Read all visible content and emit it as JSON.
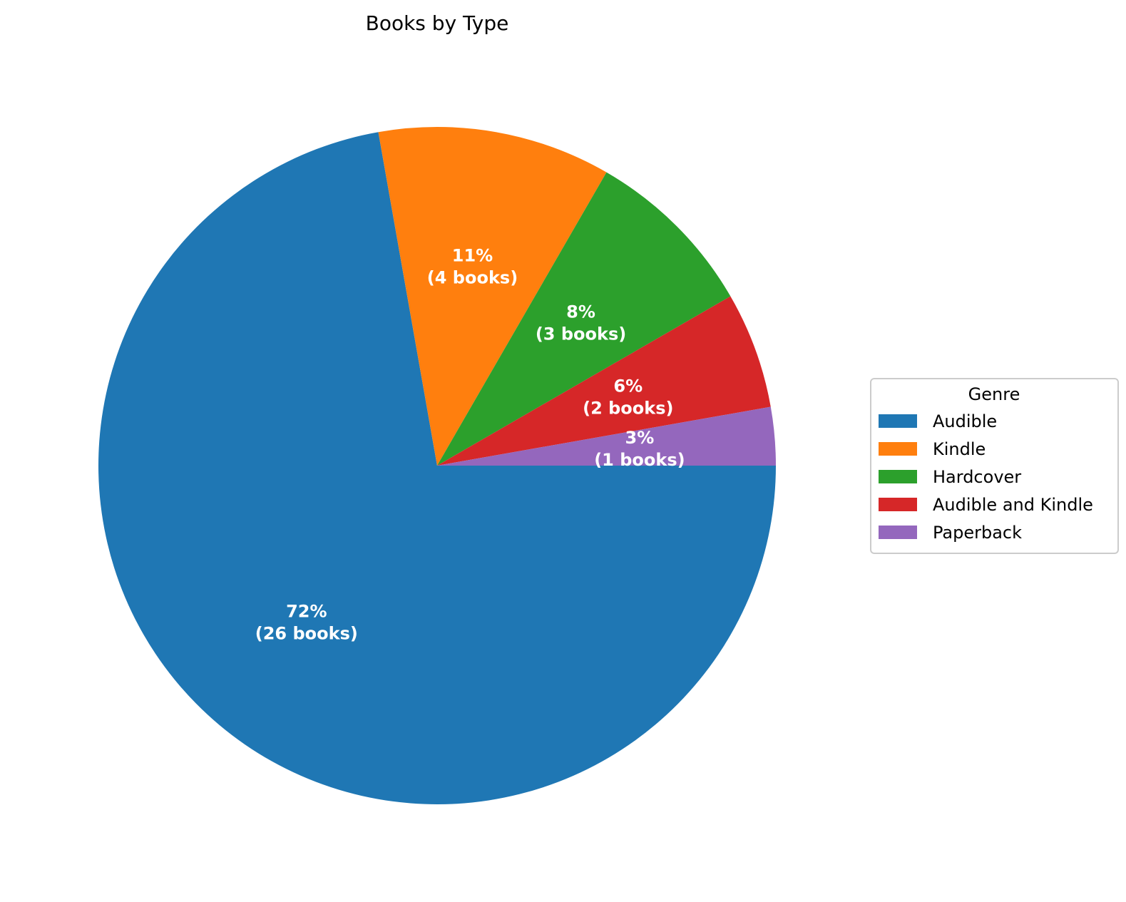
{
  "chart_data": {
    "type": "pie",
    "title": "Books by Type",
    "legend": {
      "title": "Genre",
      "placement": "right"
    },
    "start_angle_deg": 0,
    "direction": "clockwise",
    "slices": [
      {
        "label": "Audible",
        "value": 26,
        "pct_label": "72%",
        "count_label": "(26 books)",
        "color": "#1f77b4"
      },
      {
        "label": "Kindle",
        "value": 4,
        "pct_label": "11%",
        "count_label": "(4 books)",
        "color": "#ff7f0e"
      },
      {
        "label": "Hardcover",
        "value": 3,
        "pct_label": "8%",
        "count_label": "(3 books)",
        "color": "#2ca02c"
      },
      {
        "label": "Audible and Kindle",
        "value": 2,
        "pct_label": "6%",
        "count_label": "(2 books)",
        "color": "#d62728"
      },
      {
        "label": "Paperback",
        "value": 1,
        "pct_label": "3%",
        "count_label": "(1 books)",
        "color": "#9467bd"
      }
    ]
  }
}
